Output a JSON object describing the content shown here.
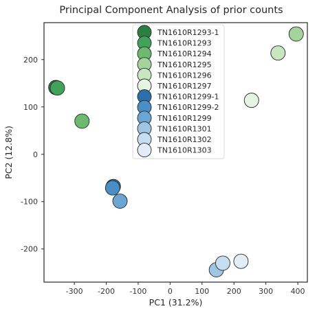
{
  "chart_data": {
    "type": "scatter",
    "title": "Principal Component Analysis of prior counts",
    "xlabel": "PC1 (31.2%)",
    "ylabel": "PC2 (12.8%)",
    "xlim": [
      -395,
      430
    ],
    "ylim": [
      -270,
      278
    ],
    "xticks": [
      -300,
      -200,
      -100,
      0,
      100,
      200,
      300,
      400
    ],
    "yticks": [
      -200,
      -100,
      0,
      100,
      200
    ],
    "grid": false,
    "legend_position": "top-center",
    "series": [
      {
        "name": "TN1610R1293-1",
        "color": "#2a7f45",
        "points": [
          [
            -358,
            141
          ]
        ]
      },
      {
        "name": "TN1610R1293",
        "color": "#41a25b",
        "points": [
          [
            -353,
            140
          ]
        ]
      },
      {
        "name": "TN1610R1294",
        "color": "#6cba6f",
        "points": [
          [
            -276,
            70
          ]
        ]
      },
      {
        "name": "TN1610R1295",
        "color": "#a4d49c",
        "points": [
          [
            395,
            254
          ]
        ]
      },
      {
        "name": "TN1610R1296",
        "color": "#c8e7c1",
        "points": [
          [
            338,
            214
          ]
        ]
      },
      {
        "name": "TN1610R1297",
        "color": "#e6f4e2",
        "points": [
          [
            255,
            114
          ]
        ]
      },
      {
        "name": "TN1610R1299-1",
        "color": "#2d6fad",
        "points": [
          [
            -178,
            -68
          ]
        ]
      },
      {
        "name": "TN1610R1299-2",
        "color": "#4a8ec6",
        "points": [
          [
            -180,
            -71
          ]
        ]
      },
      {
        "name": "TN1610R1299",
        "color": "#6aa5d3",
        "points": [
          [
            -157,
            -99
          ]
        ]
      },
      {
        "name": "TN1610R1301",
        "color": "#9ec6e3",
        "points": [
          [
            145,
            -244
          ]
        ]
      },
      {
        "name": "TN1610R1302",
        "color": "#c6dcf0",
        "points": [
          [
            165,
            -230
          ]
        ]
      },
      {
        "name": "TN1610R1303",
        "color": "#e2edf8",
        "points": [
          [
            222,
            -226
          ]
        ]
      }
    ]
  }
}
